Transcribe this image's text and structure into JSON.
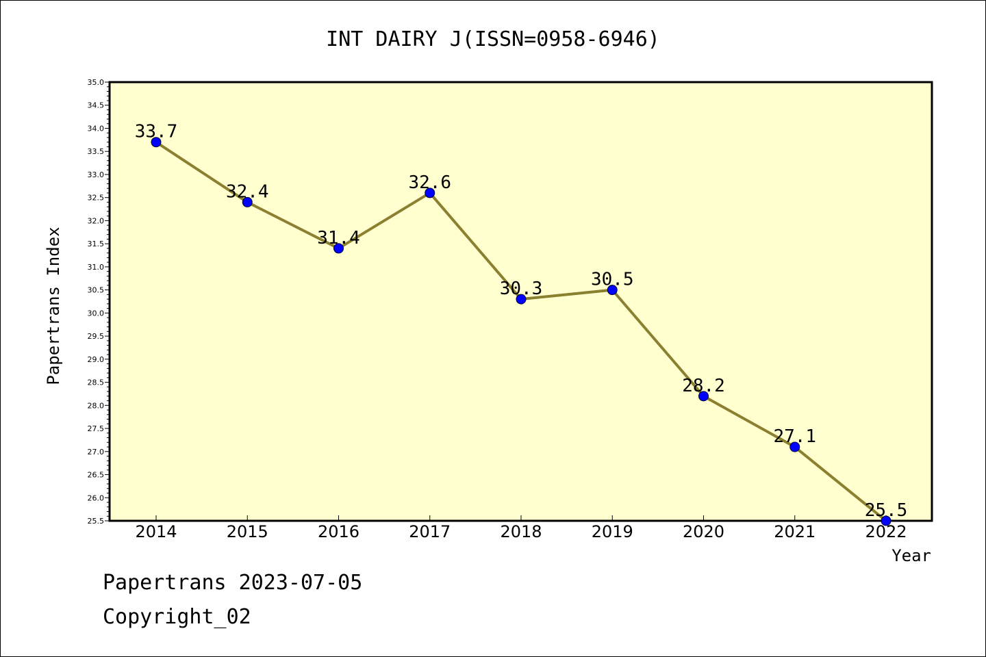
{
  "chart_data": {
    "type": "line",
    "title": "INT DAIRY J(ISSN=0958-6946)",
    "xlabel": "Year",
    "ylabel": "Papertrans Index",
    "categories": [
      "2014",
      "2015",
      "2016",
      "2017",
      "2018",
      "2019",
      "2020",
      "2021",
      "2022"
    ],
    "series": [
      {
        "values": [
          33.7,
          32.4,
          31.4,
          32.6,
          30.3,
          30.5,
          28.2,
          27.1,
          25.5
        ],
        "labels": [
          "33.7",
          "32.4",
          "31.4",
          "32.6",
          "30.3",
          "30.5",
          "28.2",
          "27.1",
          "25.5"
        ]
      }
    ],
    "ylim": [
      25.5,
      35.0
    ],
    "yticks": [
      "25.5",
      "26.0",
      "26.5",
      "27.0",
      "27.5",
      "28.0",
      "28.5",
      "29.0",
      "29.5",
      "30.0",
      "30.5",
      "31.0",
      "31.5",
      "32.0",
      "32.5",
      "33.0",
      "33.5",
      "34.0",
      "34.5",
      "35.0"
    ],
    "grid": false,
    "colors": {
      "plot_background": "#ffffd0",
      "line": "#8b8030",
      "marker": "#0000ff"
    }
  },
  "footer": {
    "line1": "Papertrans 2023-07-05",
    "line2": "Copyright_02"
  }
}
